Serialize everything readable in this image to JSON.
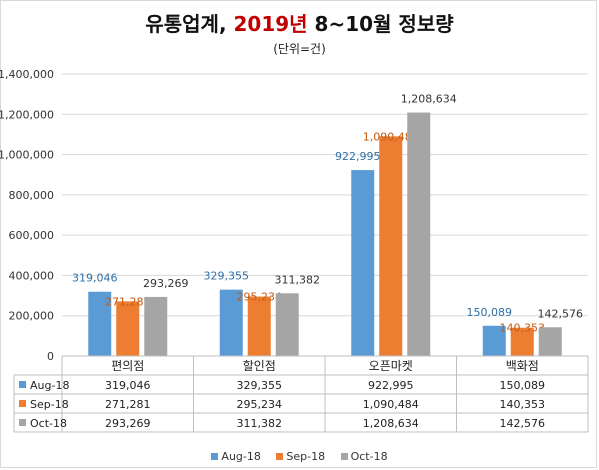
{
  "title": {
    "main": "유통업계, ",
    "highlight": "2019년",
    "rest": " 8~10월 정보량"
  },
  "subtitle": "(단위=건)",
  "colors": {
    "aug": "#5b9bd5",
    "sep": "#ed7d31",
    "oct": "#a5a5a5",
    "aug_label": "#2e6fa8",
    "sep_label": "#c55a11",
    "oct_label": "#333333"
  },
  "chart_data": {
    "type": "bar",
    "categories": [
      "편의점",
      "할인점",
      "오픈마켓",
      "백화점"
    ],
    "series": [
      {
        "name": "Aug-18",
        "values": [
          319046,
          329355,
          922995,
          150089
        ],
        "labels": [
          "319,046",
          "329,355",
          "922,995",
          "150,089"
        ]
      },
      {
        "name": "Sep-18",
        "values": [
          271281,
          295234,
          1090484,
          140353
        ],
        "labels": [
          "271,281",
          "295,234",
          "1,090,484",
          "140,353"
        ]
      },
      {
        "name": "Oct-18",
        "values": [
          293269,
          311382,
          1208634,
          142576
        ],
        "labels": [
          "293,269",
          "311,382",
          "1,208,634",
          "142,576"
        ]
      }
    ],
    "ylim": [
      0,
      1400000
    ],
    "yticks": [
      "1,400,000",
      "1,200,000",
      "1,000,000",
      "800,000",
      "600,000",
      "400,000",
      "200,000",
      "0"
    ],
    "ytick_values": [
      1400000,
      1200000,
      1000000,
      800000,
      600000,
      400000,
      200000,
      0
    ],
    "grid": true,
    "legend_position": "bottom",
    "data_table": true
  }
}
